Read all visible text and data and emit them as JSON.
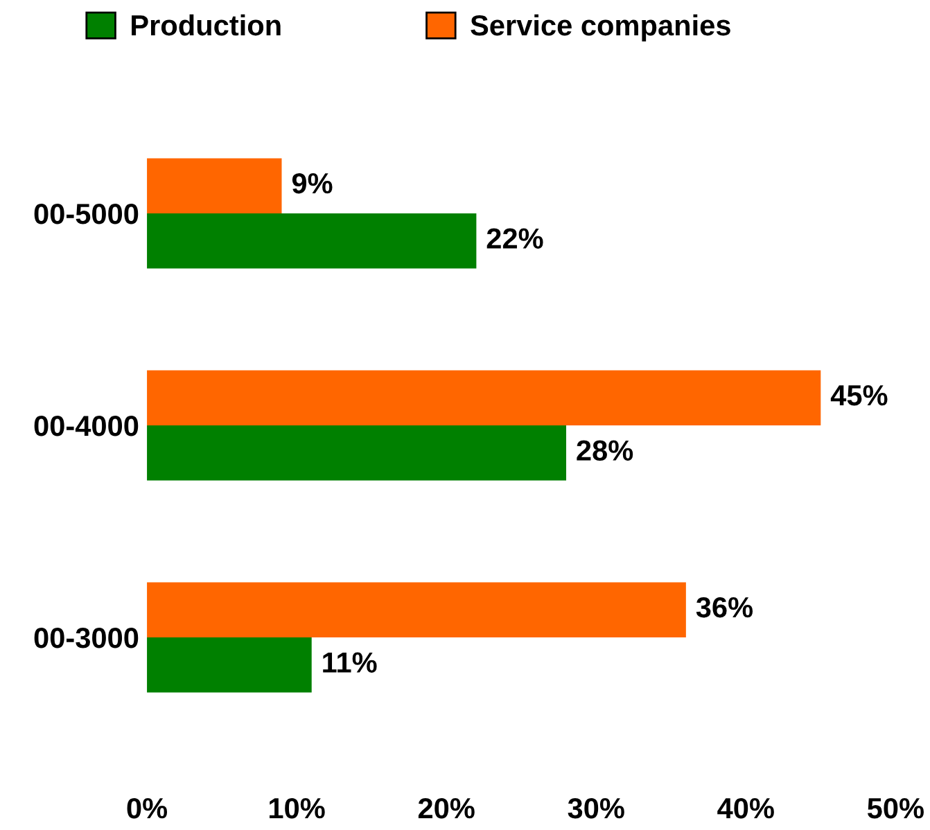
{
  "chart_data": {
    "type": "bar",
    "orientation": "horizontal",
    "categories": [
      "00-5000",
      "00-4000",
      "00-3000"
    ],
    "series": [
      {
        "name": "Production",
        "color": "#008000",
        "values": [
          22,
          28,
          11
        ],
        "value_labels": [
          "22%",
          "28%",
          "11%"
        ]
      },
      {
        "name": "Service companies",
        "color": "#ff6600",
        "values": [
          9,
          45,
          36
        ],
        "value_labels": [
          "9%",
          "45%",
          "36%"
        ]
      }
    ],
    "xlim": [
      0,
      50
    ],
    "xticks": [
      {
        "value": 0,
        "label": "0%"
      },
      {
        "value": 10,
        "label": "10%"
      },
      {
        "value": 20,
        "label": "20%"
      },
      {
        "value": 30,
        "label": "30%"
      },
      {
        "value": 40,
        "label": "40%"
      },
      {
        "value": 50,
        "label": "50%"
      }
    ],
    "grid": false,
    "legend": "top"
  }
}
